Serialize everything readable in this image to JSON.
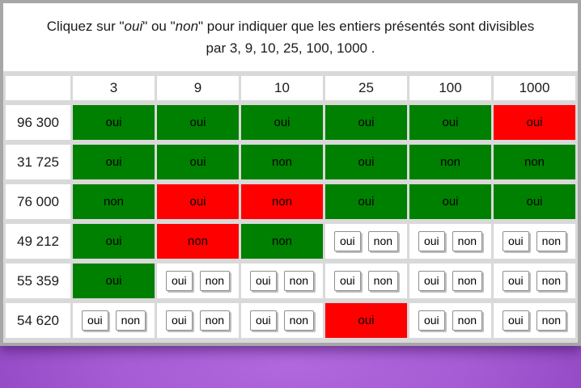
{
  "instruction": {
    "part1": "Cliquez sur \"",
    "oui_italic": "oui",
    "part2": "\" ou \"",
    "non_italic": "non",
    "part3": "\" pour indiquer que les entiers présentés sont divisibles",
    "line2": "par 3, 9, 10, 25, 100, 1000 ."
  },
  "buttons": {
    "oui": "oui",
    "non": "non"
  },
  "colors": {
    "correct_green": "#008000",
    "incorrect_red": "#ff0000",
    "frame_gray": "#a7a7a7",
    "gap_gray": "#d9d9d9",
    "purple_light": "#b168de",
    "purple_mid": "#a55cd4",
    "purple_dark": "#8a3fbc"
  },
  "table": {
    "corner_label": "",
    "col_headers": [
      "3",
      "9",
      "10",
      "25",
      "100",
      "1000"
    ],
    "rows": [
      {
        "label": "96 300",
        "cells": [
          {
            "state": "answered",
            "value": "oui",
            "result": "correct"
          },
          {
            "state": "answered",
            "value": "oui",
            "result": "correct"
          },
          {
            "state": "answered",
            "value": "oui",
            "result": "correct"
          },
          {
            "state": "answered",
            "value": "oui",
            "result": "correct"
          },
          {
            "state": "answered",
            "value": "oui",
            "result": "correct"
          },
          {
            "state": "answered",
            "value": "oui",
            "result": "incorrect"
          }
        ]
      },
      {
        "label": "31 725",
        "cells": [
          {
            "state": "answered",
            "value": "oui",
            "result": "correct"
          },
          {
            "state": "answered",
            "value": "oui",
            "result": "correct"
          },
          {
            "state": "answered",
            "value": "non",
            "result": "correct"
          },
          {
            "state": "answered",
            "value": "oui",
            "result": "correct"
          },
          {
            "state": "answered",
            "value": "non",
            "result": "correct"
          },
          {
            "state": "answered",
            "value": "non",
            "result": "correct"
          }
        ]
      },
      {
        "label": "76 000",
        "cells": [
          {
            "state": "answered",
            "value": "non",
            "result": "correct"
          },
          {
            "state": "answered",
            "value": "oui",
            "result": "incorrect"
          },
          {
            "state": "answered",
            "value": "non",
            "result": "incorrect"
          },
          {
            "state": "answered",
            "value": "oui",
            "result": "correct"
          },
          {
            "state": "answered",
            "value": "oui",
            "result": "correct"
          },
          {
            "state": "answered",
            "value": "oui",
            "result": "correct"
          }
        ]
      },
      {
        "label": "49 212",
        "cells": [
          {
            "state": "answered",
            "value": "oui",
            "result": "correct"
          },
          {
            "state": "answered",
            "value": "non",
            "result": "incorrect"
          },
          {
            "state": "answered",
            "value": "non",
            "result": "correct"
          },
          {
            "state": "unanswered"
          },
          {
            "state": "unanswered"
          },
          {
            "state": "unanswered"
          }
        ]
      },
      {
        "label": "55 359",
        "cells": [
          {
            "state": "answered",
            "value": "oui",
            "result": "correct"
          },
          {
            "state": "unanswered"
          },
          {
            "state": "unanswered"
          },
          {
            "state": "unanswered"
          },
          {
            "state": "unanswered"
          },
          {
            "state": "unanswered"
          }
        ]
      },
      {
        "label": "54 620",
        "cells": [
          {
            "state": "unanswered"
          },
          {
            "state": "unanswered"
          },
          {
            "state": "unanswered"
          },
          {
            "state": "answered",
            "value": "oui",
            "result": "incorrect"
          },
          {
            "state": "unanswered"
          },
          {
            "state": "unanswered"
          }
        ]
      }
    ]
  }
}
